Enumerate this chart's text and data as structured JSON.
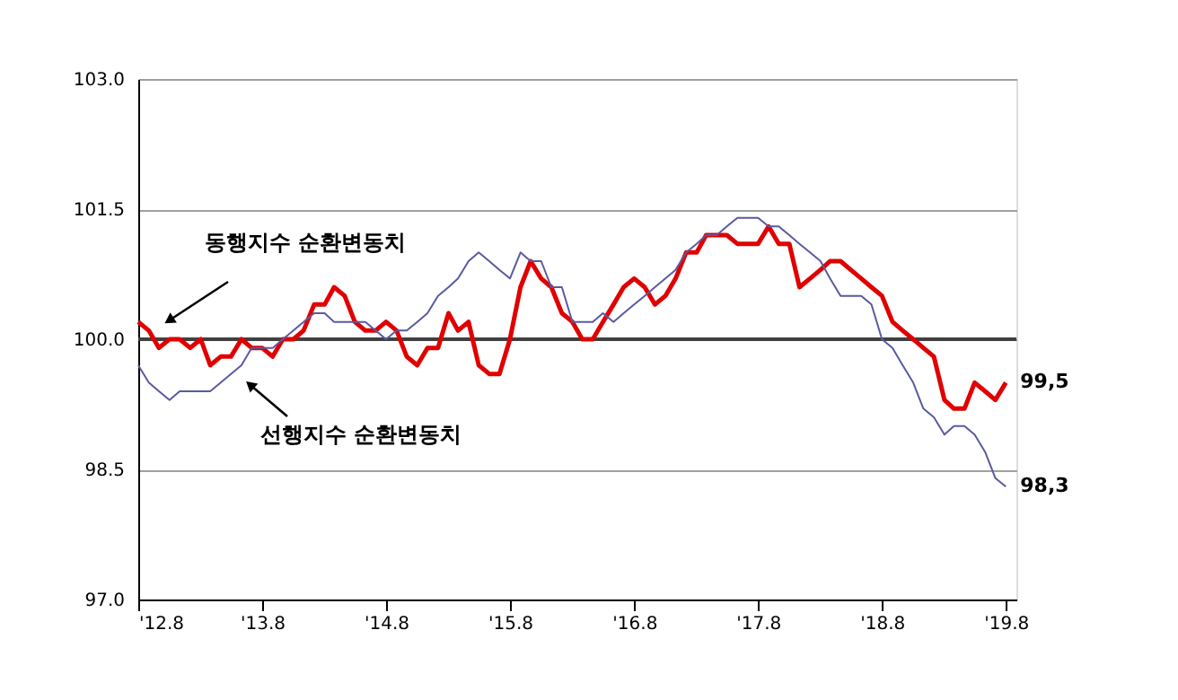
{
  "chart_data": {
    "type": "line",
    "x": [
      "2012-08",
      "2012-09",
      "2012-10",
      "2012-11",
      "2012-12",
      "2013-01",
      "2013-02",
      "2013-03",
      "2013-04",
      "2013-05",
      "2013-06",
      "2013-07",
      "2013-08",
      "2013-09",
      "2013-10",
      "2013-11",
      "2013-12",
      "2014-01",
      "2014-02",
      "2014-03",
      "2014-04",
      "2014-05",
      "2014-06",
      "2014-07",
      "2014-08",
      "2014-09",
      "2014-10",
      "2014-11",
      "2014-12",
      "2015-01",
      "2015-02",
      "2015-03",
      "2015-04",
      "2015-05",
      "2015-06",
      "2015-07",
      "2015-08",
      "2015-09",
      "2015-10",
      "2015-11",
      "2015-12",
      "2016-01",
      "2016-02",
      "2016-03",
      "2016-04",
      "2016-05",
      "2016-06",
      "2016-07",
      "2016-08",
      "2016-09",
      "2016-10",
      "2016-11",
      "2016-12",
      "2017-01",
      "2017-02",
      "2017-03",
      "2017-04",
      "2017-05",
      "2017-06",
      "2017-07",
      "2017-08",
      "2017-09",
      "2017-10",
      "2017-11",
      "2017-12",
      "2018-01",
      "2018-02",
      "2018-03",
      "2018-04",
      "2018-05",
      "2018-06",
      "2018-07",
      "2018-08",
      "2018-09",
      "2018-10",
      "2018-11",
      "2018-12",
      "2019-01",
      "2019-02",
      "2019-03",
      "2019-04",
      "2019-05",
      "2019-06",
      "2019-07",
      "2019-08"
    ],
    "series": [
      {
        "name": "동행지수 순환변동치",
        "color": "#e00000",
        "values": [
          100.2,
          100.1,
          99.9,
          100.0,
          100.0,
          99.9,
          100.0,
          99.7,
          99.8,
          99.8,
          100.0,
          99.9,
          99.9,
          99.8,
          100.0,
          100.0,
          100.1,
          100.4,
          100.4,
          100.6,
          100.5,
          100.2,
          100.1,
          100.1,
          100.2,
          100.1,
          99.8,
          99.7,
          99.9,
          99.9,
          100.3,
          100.1,
          100.2,
          99.7,
          99.6,
          99.6,
          100.0,
          100.6,
          100.9,
          100.7,
          100.6,
          100.3,
          100.2,
          100.0,
          100.0,
          100.2,
          100.4,
          100.6,
          100.7,
          100.6,
          100.4,
          100.5,
          100.7,
          101.0,
          101.0,
          101.2,
          101.2,
          101.2,
          101.1,
          101.1,
          101.1,
          101.3,
          101.1,
          101.1,
          100.6,
          100.7,
          100.8,
          100.9,
          100.9,
          100.8,
          100.7,
          100.6,
          100.5,
          100.2,
          100.1,
          100.0,
          99.9,
          99.8,
          99.3,
          99.2,
          99.2,
          99.5,
          99.4,
          99.3,
          99.5
        ],
        "value_labels": [
          null,
          null,
          null,
          null,
          null,
          null,
          null,
          null,
          null,
          null,
          null,
          null,
          null,
          null,
          null,
          null,
          null,
          null,
          null,
          null,
          null,
          null,
          null,
          null,
          null,
          null,
          null,
          null,
          null,
          null,
          null,
          null,
          null,
          null,
          null,
          null,
          null,
          null,
          null,
          null,
          null,
          null,
          null,
          null,
          null,
          null,
          null,
          null,
          null,
          null,
          null,
          null,
          null,
          null,
          null,
          null,
          null,
          null,
          null,
          null,
          null,
          null,
          null,
          null,
          null,
          null,
          null,
          null,
          null,
          null,
          null,
          null,
          null,
          null,
          null,
          null,
          null,
          null,
          null,
          null,
          null,
          null,
          null,
          null,
          "99,5"
        ]
      },
      {
        "name": "선행지수 순환변동치",
        "color": "#5a5aa0",
        "values": [
          99.7,
          99.5,
          99.4,
          99.3,
          99.4,
          99.4,
          99.4,
          99.4,
          99.5,
          99.6,
          99.7,
          99.9,
          99.9,
          99.9,
          100.0,
          100.1,
          100.2,
          100.3,
          100.3,
          100.2,
          100.2,
          100.2,
          100.2,
          100.1,
          100.0,
          100.1,
          100.1,
          100.2,
          100.3,
          100.5,
          100.6,
          100.7,
          100.9,
          101.0,
          100.9,
          100.8,
          100.7,
          101.0,
          100.9,
          100.9,
          100.6,
          100.6,
          100.2,
          100.2,
          100.2,
          100.3,
          100.2,
          100.3,
          100.4,
          100.5,
          100.6,
          100.7,
          100.8,
          101.0,
          101.1,
          101.2,
          101.2,
          101.3,
          101.4,
          101.4,
          101.4,
          101.3,
          101.3,
          101.2,
          101.1,
          101.0,
          100.9,
          100.7,
          100.5,
          100.5,
          100.5,
          100.4,
          100.0,
          99.9,
          99.7,
          99.5,
          99.2,
          99.1,
          98.9,
          99.0,
          99.0,
          98.9,
          98.7,
          98.4,
          98.3
        ],
        "value_labels": [
          null,
          null,
          null,
          null,
          null,
          null,
          null,
          null,
          null,
          null,
          null,
          null,
          null,
          null,
          null,
          null,
          null,
          null,
          null,
          null,
          null,
          null,
          null,
          null,
          null,
          null,
          null,
          null,
          null,
          null,
          null,
          null,
          null,
          null,
          null,
          null,
          null,
          null,
          null,
          null,
          null,
          null,
          null,
          null,
          null,
          null,
          null,
          null,
          null,
          null,
          null,
          null,
          null,
          null,
          null,
          null,
          null,
          null,
          null,
          null,
          null,
          null,
          null,
          null,
          null,
          null,
          null,
          null,
          null,
          null,
          null,
          null,
          null,
          null,
          null,
          null,
          null,
          null,
          null,
          null,
          null,
          null,
          null,
          null,
          "98,3"
        ]
      }
    ],
    "xlim": [
      "2012-08",
      "2019-09"
    ],
    "xticks": [
      {
        "value": "2012-08",
        "label": "'12.8"
      },
      {
        "value": "2013-08",
        "label": "'13.8"
      },
      {
        "value": "2014-08",
        "label": "'14.8"
      },
      {
        "value": "2015-08",
        "label": "'15.8"
      },
      {
        "value": "2016-08",
        "label": "'16.8"
      },
      {
        "value": "2017-08",
        "label": "'17.8"
      },
      {
        "value": "2018-08",
        "label": "'18.8"
      },
      {
        "value": "2019-08",
        "label": "'19.8"
      }
    ],
    "ylim": [
      97.0,
      103.0
    ],
    "yticks": [
      {
        "value": 97.0,
        "label": "97.0"
      },
      {
        "value": 98.5,
        "label": "98.5"
      },
      {
        "value": 100.0,
        "label": "100.0"
      },
      {
        "value": 101.5,
        "label": "101.5"
      },
      {
        "value": 103.0,
        "label": "103.0"
      }
    ],
    "grid": "y",
    "ref_lines": [
      {
        "axis": "y",
        "value": 100.0,
        "label": null,
        "color": "#404040"
      }
    ],
    "legend": false
  }
}
